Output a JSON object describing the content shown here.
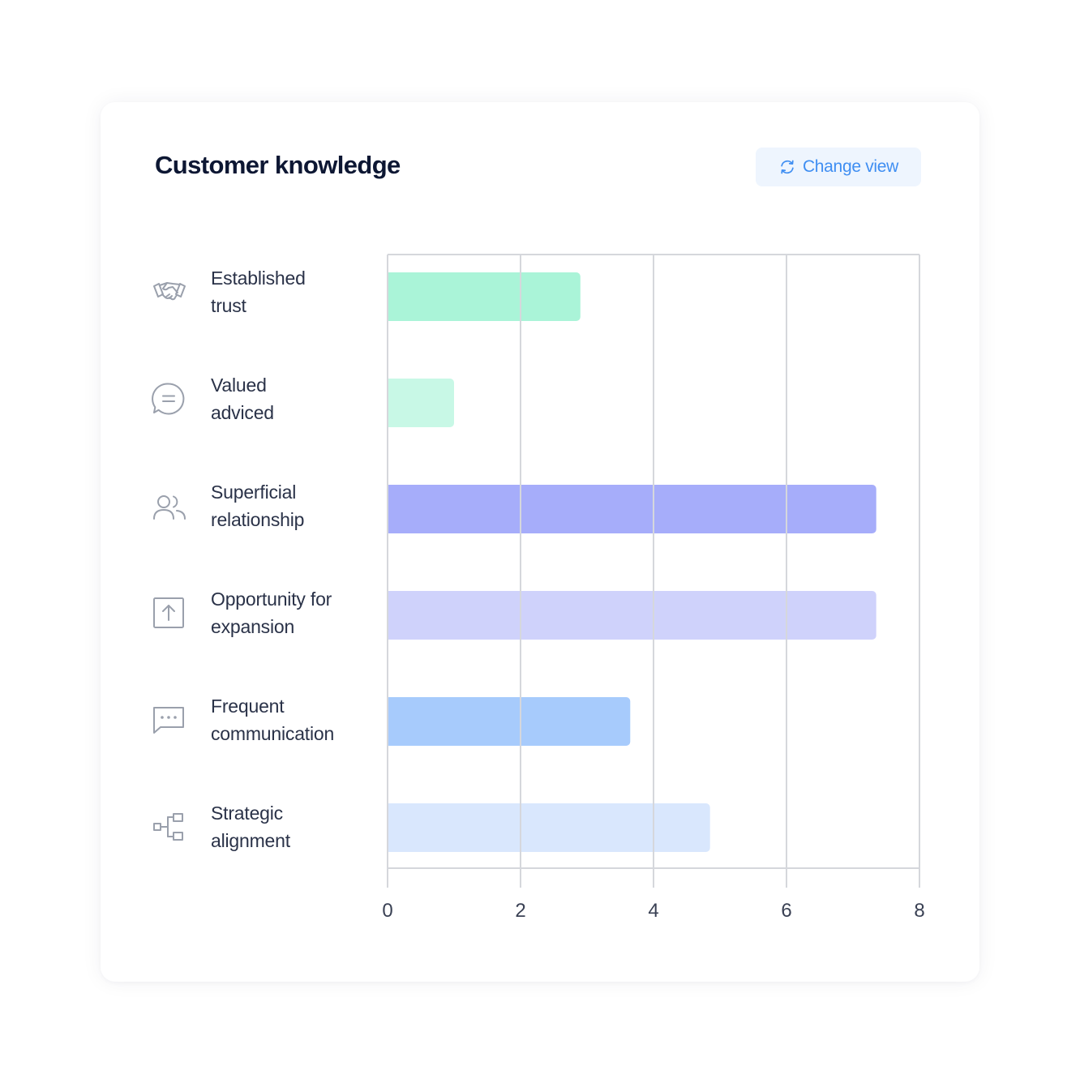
{
  "card": {
    "title": "Customer knowledge",
    "change_view_label": "Change view",
    "change_view_icon": "refresh-icon"
  },
  "rows": [
    {
      "label_line1": "Established",
      "label_line2": "trust",
      "icon": "handshake-icon",
      "color": "#aaf4d8"
    },
    {
      "label_line1": "Valued",
      "label_line2": "adviced",
      "icon": "chat-bubble-icon",
      "color": "#c8f8e6"
    },
    {
      "label_line1": "Superficial",
      "label_line2": "relationship",
      "icon": "users-icon",
      "color": "#a6adfa"
    },
    {
      "label_line1": "Opportunity for",
      "label_line2": "expansion",
      "icon": "upload-box-icon",
      "color": "#cfd2fb"
    },
    {
      "label_line1": "Frequent",
      "label_line2": "communication",
      "icon": "message-dots-icon",
      "color": "#a7cbfc"
    },
    {
      "label_line1": "Strategic",
      "label_line2": "alignment",
      "icon": "hierarchy-icon",
      "color": "#d9e7fd"
    }
  ],
  "chart_data": {
    "type": "bar",
    "orientation": "horizontal",
    "categories": [
      "Established trust",
      "Valued adviced",
      "Superficial relationship",
      "Opportunity for expansion",
      "Frequent communication",
      "Strategic alignment"
    ],
    "values": [
      2.9,
      1.0,
      7.35,
      7.35,
      3.65,
      4.85
    ],
    "xlim": [
      0,
      8
    ],
    "x_ticks": [
      "0",
      "2",
      "4",
      "6",
      "8"
    ],
    "grid": true,
    "title": "",
    "xlabel": "",
    "ylabel": ""
  }
}
